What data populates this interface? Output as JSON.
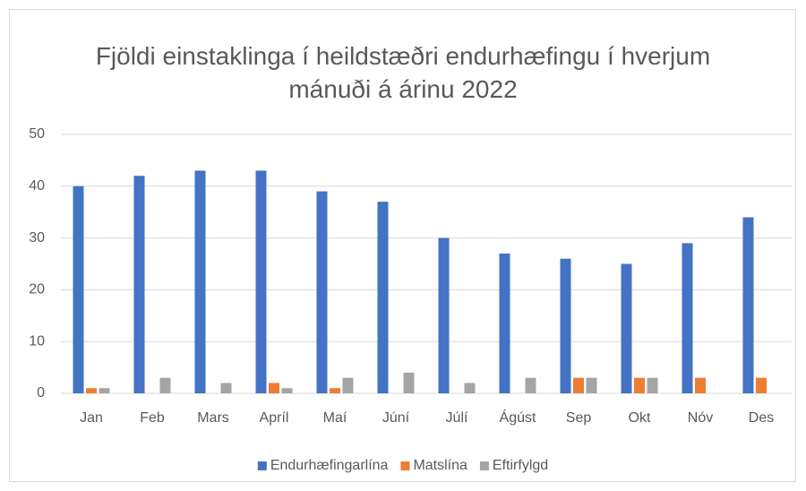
{
  "chart_data": {
    "type": "bar",
    "title": "Fjöldi einstaklinga í heildstæðri endurhæfingu í hverjum mánuði á árinu 2022",
    "categories": [
      "Jan",
      "Feb",
      "Mars",
      "Apríl",
      "Maí",
      "Júní",
      "Júlí",
      "Ágúst",
      "Sep",
      "Okt",
      "Nóv",
      "Des"
    ],
    "series": [
      {
        "name": "Endurhæfingarlína",
        "color": "#4472c4",
        "values": [
          40,
          42,
          43,
          43,
          39,
          37,
          30,
          27,
          26,
          25,
          29,
          34
        ]
      },
      {
        "name": "Matslína",
        "color": "#ed7d31",
        "values": [
          1,
          0,
          0,
          2,
          1,
          0,
          0,
          0,
          3,
          3,
          3,
          3
        ]
      },
      {
        "name": "Eftirfylgd",
        "color": "#a5a5a5",
        "values": [
          1,
          3,
          2,
          1,
          3,
          4,
          2,
          3,
          3,
          3,
          0,
          0
        ]
      }
    ],
    "ylim": [
      0,
      50
    ],
    "yticks": [
      0,
      10,
      20,
      30,
      40,
      50
    ],
    "grid": true,
    "legend": "bottom"
  }
}
